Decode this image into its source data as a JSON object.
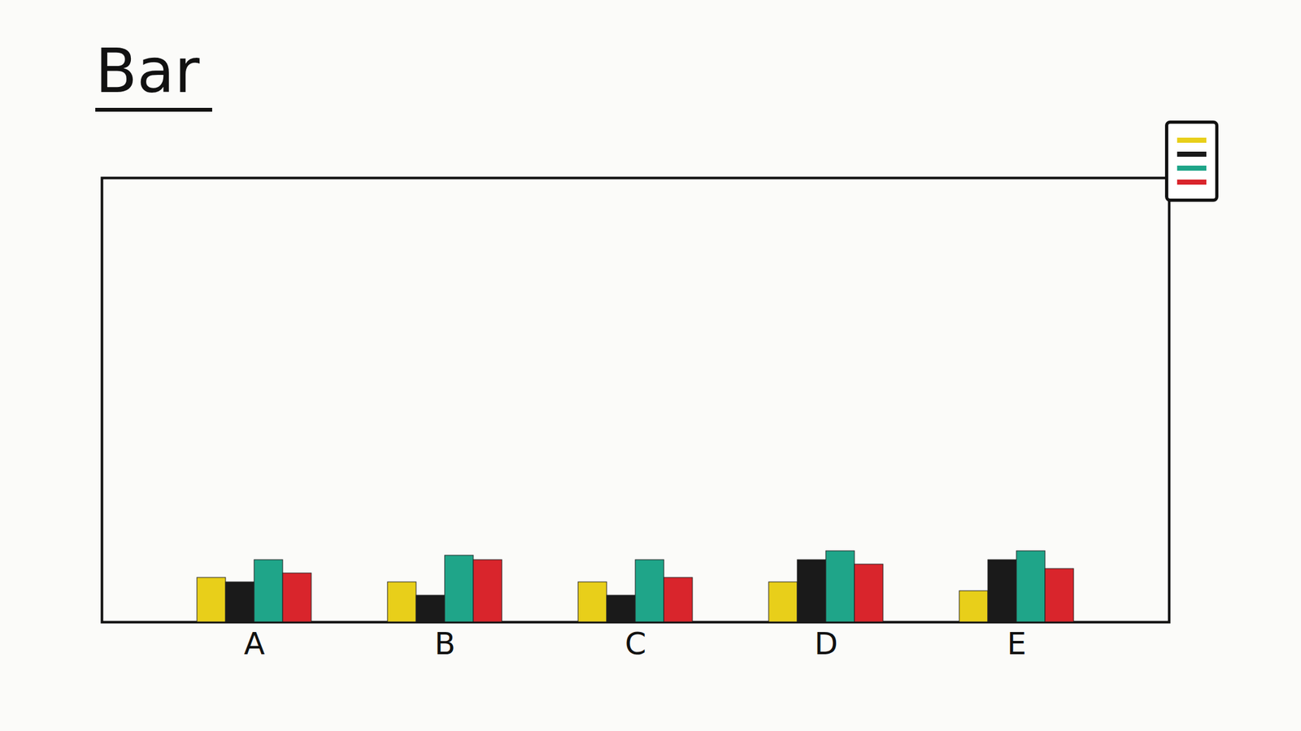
{
  "chart_data": {
    "type": "bar",
    "title": "Bar",
    "categories": [
      "A",
      "B",
      "C",
      "D",
      "E"
    ],
    "series": [
      {
        "color": "#e8cf1a",
        "values": [
          1.0,
          0.9,
          0.9,
          0.9,
          0.7
        ]
      },
      {
        "color": "#1a1a1a",
        "values": [
          0.9,
          0.6,
          0.6,
          1.4,
          1.4
        ]
      },
      {
        "color": "#1fa589",
        "values": [
          1.4,
          1.5,
          1.4,
          1.6,
          1.6
        ]
      },
      {
        "color": "#d9252c",
        "values": [
          1.1,
          1.4,
          1.0,
          1.3,
          1.2
        ]
      }
    ],
    "ylim": [
      0,
      10
    ],
    "tick_labels": "x",
    "legend": "top-right"
  }
}
